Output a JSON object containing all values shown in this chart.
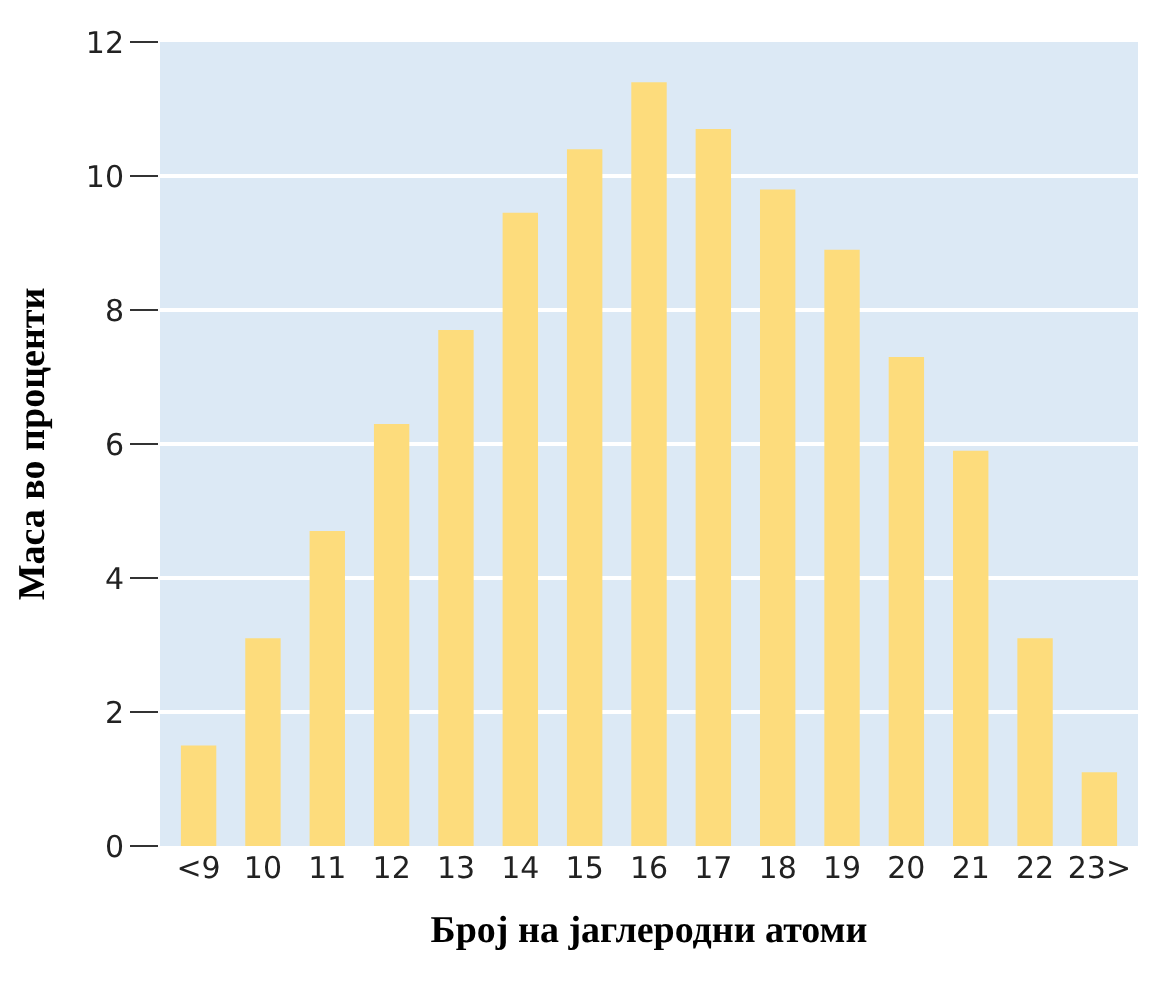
{
  "chart_data": {
    "type": "bar",
    "xlabel": "Број на јаглеродни атоми",
    "ylabel": "Маса во проценти",
    "categories": [
      "<9",
      "10",
      "11",
      "12",
      "13",
      "14",
      "15",
      "16",
      "17",
      "18",
      "19",
      "20",
      "21",
      "22",
      "23>"
    ],
    "values": [
      1.5,
      3.1,
      4.7,
      6.3,
      7.7,
      9.45,
      10.4,
      11.4,
      10.7,
      9.8,
      8.9,
      7.3,
      5.9,
      3.1,
      1.1
    ],
    "color": "#fddc7c",
    "ylim": [
      0,
      12
    ],
    "yticks": [
      0,
      2,
      4,
      6,
      8,
      10,
      12
    ],
    "grid": "y"
  }
}
